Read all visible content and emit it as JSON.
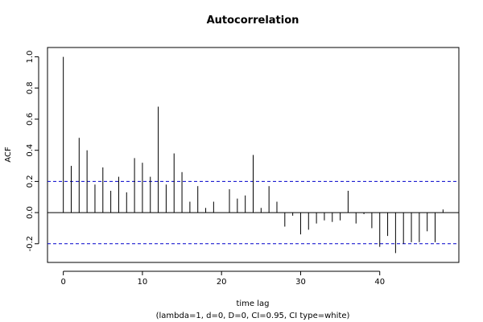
{
  "chart_data": {
    "type": "bar",
    "title": "Autocorrelation",
    "xlabel": "time lag",
    "subtitle": "(lambda=1, d=0, D=0, CI=0.95, CI type=white)",
    "ylabel": "ACF",
    "xlim": [
      -2,
      50
    ],
    "ylim": [
      -0.32,
      1.06
    ],
    "x_ticks": [
      0,
      10,
      20,
      30,
      40
    ],
    "y_ticks": [
      -0.2,
      0.0,
      0.2,
      0.4,
      0.6,
      0.8,
      1.0
    ],
    "y_tick_labels": [
      "-0.2",
      "0.0",
      "0.2",
      "0.4",
      "0.6",
      "0.8",
      "1.0"
    ],
    "ci_upper": 0.2,
    "ci_lower": -0.2,
    "ci_color": "#0000cc",
    "lags": [
      0,
      1,
      2,
      3,
      4,
      5,
      6,
      7,
      8,
      9,
      10,
      11,
      12,
      13,
      14,
      15,
      16,
      17,
      18,
      19,
      20,
      21,
      22,
      23,
      24,
      25,
      26,
      27,
      28,
      29,
      30,
      31,
      32,
      33,
      34,
      35,
      36,
      37,
      38,
      39,
      40,
      41,
      42,
      43,
      44,
      45,
      46,
      47,
      48
    ],
    "values": [
      1.0,
      0.3,
      0.48,
      0.4,
      0.18,
      0.29,
      0.14,
      0.23,
      0.13,
      0.35,
      0.32,
      0.23,
      0.68,
      0.18,
      0.38,
      0.26,
      0.07,
      0.17,
      0.03,
      0.07,
      0.0,
      0.15,
      0.09,
      0.11,
      0.37,
      0.03,
      0.17,
      0.07,
      -0.09,
      -0.02,
      -0.14,
      -0.11,
      -0.07,
      -0.05,
      -0.06,
      -0.05,
      0.14,
      -0.07,
      -0.01,
      -0.1,
      -0.22,
      -0.15,
      -0.26,
      -0.2,
      -0.19,
      -0.19,
      -0.12,
      -0.19,
      0.02
    ]
  }
}
